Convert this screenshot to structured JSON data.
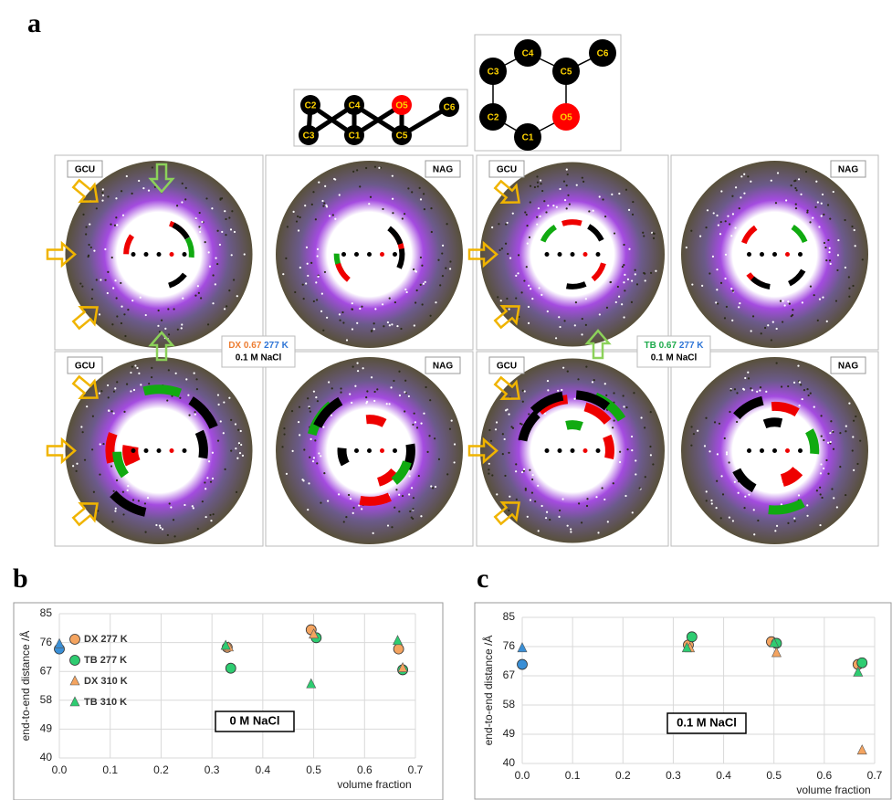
{
  "panel_labels": [
    "a",
    "b",
    "c"
  ],
  "molecules": [
    {
      "atoms": [
        "C2",
        "C3",
        "C4",
        "C1",
        "O5",
        "C5",
        "C6"
      ]
    },
    {
      "atoms": [
        "C4",
        "C3",
        "C5",
        "C6",
        "C2",
        "O5",
        "C1"
      ]
    }
  ],
  "density_panels": [
    "GCU",
    "NAG",
    "GCU",
    "NAG",
    "GCU",
    "NAG",
    "GCU",
    "NAG"
  ],
  "conditions": [
    {
      "system": "DX",
      "system_color": "#ed7d31",
      "fraction": "0.67",
      "temperature": "277 K",
      "salt": "0.1 M NaCl"
    },
    {
      "system": "TB",
      "system_color": "#1daa4b",
      "fraction": "0.67",
      "temperature": "277 K",
      "salt": "0.1 M NaCl"
    }
  ],
  "chart_data": [
    {
      "type": "scatter",
      "x_label": "volume fraction",
      "y_label": "end-to-end distance /Å",
      "xlim": [
        0,
        0.7
      ],
      "ylim": [
        40,
        85
      ],
      "xticks": [
        {
          "value": 0,
          "label": "0.0"
        },
        0.1,
        0.2,
        0.3,
        0.4,
        0.5,
        0.6,
        0.7
      ],
      "yticks": [
        40,
        49,
        58,
        67,
        76,
        85
      ],
      "grid": true,
      "annotation": "0 M NaCl",
      "legend": "lower left",
      "series": [
        {
          "name": "DX 277 K",
          "color": "#f4a460",
          "marker": "circle",
          "x": [
            0.33,
            0.495,
            0.667
          ],
          "values": [
            74.5,
            80,
            74
          ]
        },
        {
          "name": "TB 277 K",
          "color": "#2ecc71",
          "marker": "circle",
          "x": [
            0.337,
            0.505,
            0.675
          ],
          "values": [
            68,
            77.5,
            67.5
          ]
        },
        {
          "name": "DX 310 K",
          "color": "#f4a460",
          "marker": "triangle",
          "x": [
            0.333,
            0.5,
            0.675
          ],
          "values": [
            74.5,
            78.5,
            68
          ]
        },
        {
          "name": "TB 310 K",
          "color": "#2ecc71",
          "marker": "triangle",
          "x": [
            0.327,
            0.495,
            0.665
          ],
          "values": [
            75,
            63,
            76.5
          ]
        },
        {
          "color": "#3a8fd6",
          "marker": "circle",
          "x": [
            0
          ],
          "values": [
            74
          ]
        },
        {
          "color": "#3a8fd6",
          "marker": "triangle",
          "x": [
            0
          ],
          "values": [
            75.5
          ]
        }
      ]
    },
    {
      "type": "scatter",
      "x_label": "volume fraction",
      "y_label": "end-to-end distance /Å",
      "xlim": [
        0,
        0.7
      ],
      "ylim": [
        40,
        85
      ],
      "xticks": [
        {
          "value": 0,
          "label": "0.0"
        },
        0.1,
        0.2,
        0.3,
        0.4,
        0.5,
        0.6,
        0.7
      ],
      "yticks": [
        40,
        49,
        58,
        67,
        76,
        85
      ],
      "grid": true,
      "annotation": "0.1 M NaCl",
      "series": [
        {
          "color": "#f4a460",
          "marker": "circle",
          "x": [
            0.33,
            0.495,
            0.667
          ],
          "values": [
            76.5,
            77.5,
            70.5
          ]
        },
        {
          "color": "#2ecc71",
          "marker": "circle",
          "x": [
            0.337,
            0.505,
            0.675
          ],
          "values": [
            79,
            77,
            71
          ]
        },
        {
          "color": "#f4a460",
          "marker": "triangle",
          "x": [
            0.333,
            0.505,
            0.675
          ],
          "values": [
            75.5,
            74,
            44
          ]
        },
        {
          "color": "#2ecc71",
          "marker": "triangle",
          "x": [
            0.327,
            0.5,
            0.667
          ],
          "values": [
            75.5,
            77,
            68
          ]
        },
        {
          "color": "#3a8fd6",
          "marker": "circle",
          "x": [
            0
          ],
          "values": [
            70.5
          ]
        },
        {
          "color": "#3a8fd6",
          "marker": "triangle",
          "x": [
            0
          ],
          "values": [
            75.5
          ]
        }
      ]
    }
  ]
}
